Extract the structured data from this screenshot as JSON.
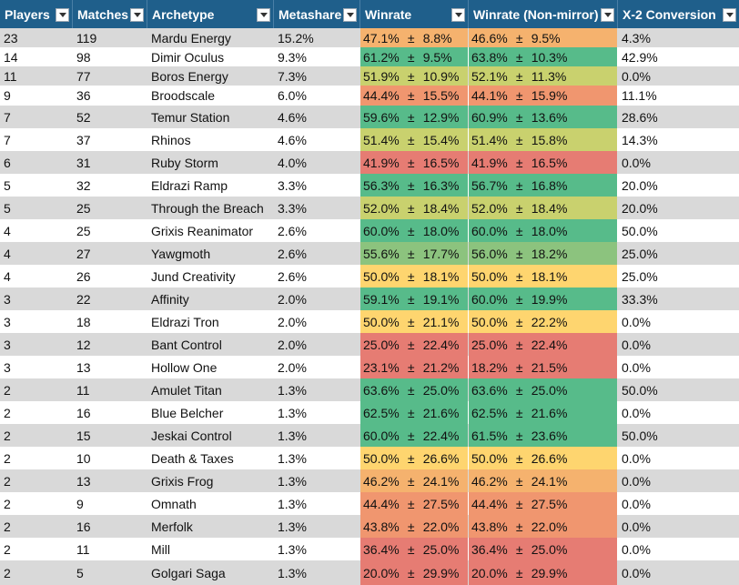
{
  "columns": [
    "Players",
    "Matches",
    "Archetype",
    "Metashare",
    "Winrate",
    "Winrate (Non-mirror)",
    "X-2 Conversion"
  ],
  "pm_symbol": "±",
  "colors": {
    "header_bg": "#1f5f8b",
    "row_alt": "#d9d9d9",
    "green": "#57bb8a",
    "light_green": "#8cc37e",
    "yellow_green": "#c9d16e",
    "yellow": "#fed56f",
    "light_orange": "#f5b26e",
    "orange": "#f0966f",
    "red": "#e67c73"
  },
  "rows": [
    {
      "players": "23",
      "matches": "119",
      "archetype": "Mardu Energy",
      "metashare": "15.2%",
      "wr": "47.1%",
      "wr_ci": "8.8%",
      "nm": "46.6%",
      "nm_ci": "9.5%",
      "x2": "4.3%",
      "wr_color": "light_orange",
      "nm_color": "light_orange"
    },
    {
      "players": "14",
      "matches": "98",
      "archetype": "Dimir Oculus",
      "metashare": "9.3%",
      "wr": "61.2%",
      "wr_ci": "9.5%",
      "nm": "63.8%",
      "nm_ci": "10.3%",
      "x2": "42.9%",
      "wr_color": "green",
      "nm_color": "green"
    },
    {
      "players": "11",
      "matches": "77",
      "archetype": "Boros Energy",
      "metashare": "7.3%",
      "wr": "51.9%",
      "wr_ci": "10.9%",
      "nm": "52.1%",
      "nm_ci": "11.3%",
      "x2": "0.0%",
      "wr_color": "yellow_green",
      "nm_color": "yellow_green"
    },
    {
      "players": "9",
      "matches": "36",
      "archetype": "Broodscale",
      "metashare": "6.0%",
      "wr": "44.4%",
      "wr_ci": "15.5%",
      "nm": "44.1%",
      "nm_ci": "15.9%",
      "x2": "11.1%",
      "wr_color": "orange",
      "nm_color": "orange"
    },
    {
      "players": "7",
      "matches": "52",
      "archetype": "Temur Station",
      "metashare": "4.6%",
      "wr": "59.6%",
      "wr_ci": "12.9%",
      "nm": "60.9%",
      "nm_ci": "13.6%",
      "x2": "28.6%",
      "wr_color": "green",
      "nm_color": "green"
    },
    {
      "players": "7",
      "matches": "37",
      "archetype": "Rhinos",
      "metashare": "4.6%",
      "wr": "51.4%",
      "wr_ci": "15.4%",
      "nm": "51.4%",
      "nm_ci": "15.8%",
      "x2": "14.3%",
      "wr_color": "yellow_green",
      "nm_color": "yellow_green"
    },
    {
      "players": "6",
      "matches": "31",
      "archetype": "Ruby Storm",
      "metashare": "4.0%",
      "wr": "41.9%",
      "wr_ci": "16.5%",
      "nm": "41.9%",
      "nm_ci": "16.5%",
      "x2": "0.0%",
      "wr_color": "red",
      "nm_color": "red"
    },
    {
      "players": "5",
      "matches": "32",
      "archetype": "Eldrazi Ramp",
      "metashare": "3.3%",
      "wr": "56.3%",
      "wr_ci": "16.3%",
      "nm": "56.7%",
      "nm_ci": "16.8%",
      "x2": "20.0%",
      "wr_color": "green",
      "nm_color": "green"
    },
    {
      "players": "5",
      "matches": "25",
      "archetype": "Through the Breach",
      "metashare": "3.3%",
      "wr": "52.0%",
      "wr_ci": "18.4%",
      "nm": "52.0%",
      "nm_ci": "18.4%",
      "x2": "20.0%",
      "wr_color": "yellow_green",
      "nm_color": "yellow_green"
    },
    {
      "players": "4",
      "matches": "25",
      "archetype": "Grixis Reanimator",
      "metashare": "2.6%",
      "wr": "60.0%",
      "wr_ci": "18.0%",
      "nm": "60.0%",
      "nm_ci": "18.0%",
      "x2": "50.0%",
      "wr_color": "green",
      "nm_color": "green"
    },
    {
      "players": "4",
      "matches": "27",
      "archetype": "Yawgmoth",
      "metashare": "2.6%",
      "wr": "55.6%",
      "wr_ci": "17.7%",
      "nm": "56.0%",
      "nm_ci": "18.2%",
      "x2": "25.0%",
      "wr_color": "light_green",
      "nm_color": "light_green"
    },
    {
      "players": "4",
      "matches": "26",
      "archetype": "Jund Creativity",
      "metashare": "2.6%",
      "wr": "50.0%",
      "wr_ci": "18.1%",
      "nm": "50.0%",
      "nm_ci": "18.1%",
      "x2": "25.0%",
      "wr_color": "yellow",
      "nm_color": "yellow"
    },
    {
      "players": "3",
      "matches": "22",
      "archetype": "Affinity",
      "metashare": "2.0%",
      "wr": "59.1%",
      "wr_ci": "19.1%",
      "nm": "60.0%",
      "nm_ci": "19.9%",
      "x2": "33.3%",
      "wr_color": "green",
      "nm_color": "green"
    },
    {
      "players": "3",
      "matches": "18",
      "archetype": "Eldrazi Tron",
      "metashare": "2.0%",
      "wr": "50.0%",
      "wr_ci": "21.1%",
      "nm": "50.0%",
      "nm_ci": "22.2%",
      "x2": "0.0%",
      "wr_color": "yellow",
      "nm_color": "yellow"
    },
    {
      "players": "3",
      "matches": "12",
      "archetype": "Bant Control",
      "metashare": "2.0%",
      "wr": "25.0%",
      "wr_ci": "22.4%",
      "nm": "25.0%",
      "nm_ci": "22.4%",
      "x2": "0.0%",
      "wr_color": "red",
      "nm_color": "red"
    },
    {
      "players": "3",
      "matches": "13",
      "archetype": "Hollow One",
      "metashare": "2.0%",
      "wr": "23.1%",
      "wr_ci": "21.2%",
      "nm": "18.2%",
      "nm_ci": "21.5%",
      "x2": "0.0%",
      "wr_color": "red",
      "nm_color": "red"
    },
    {
      "players": "2",
      "matches": "11",
      "archetype": "Amulet Titan",
      "metashare": "1.3%",
      "wr": "63.6%",
      "wr_ci": "25.0%",
      "nm": "63.6%",
      "nm_ci": "25.0%",
      "x2": "50.0%",
      "wr_color": "green",
      "nm_color": "green"
    },
    {
      "players": "2",
      "matches": "16",
      "archetype": "Blue Belcher",
      "metashare": "1.3%",
      "wr": "62.5%",
      "wr_ci": "21.6%",
      "nm": "62.5%",
      "nm_ci": "21.6%",
      "x2": "0.0%",
      "wr_color": "green",
      "nm_color": "green"
    },
    {
      "players": "2",
      "matches": "15",
      "archetype": "Jeskai Control",
      "metashare": "1.3%",
      "wr": "60.0%",
      "wr_ci": "22.4%",
      "nm": "61.5%",
      "nm_ci": "23.6%",
      "x2": "50.0%",
      "wr_color": "green",
      "nm_color": "green"
    },
    {
      "players": "2",
      "matches": "10",
      "archetype": "Death & Taxes",
      "metashare": "1.3%",
      "wr": "50.0%",
      "wr_ci": "26.6%",
      "nm": "50.0%",
      "nm_ci": "26.6%",
      "x2": "0.0%",
      "wr_color": "yellow",
      "nm_color": "yellow"
    },
    {
      "players": "2",
      "matches": "13",
      "archetype": "Grixis Frog",
      "metashare": "1.3%",
      "wr": "46.2%",
      "wr_ci": "24.1%",
      "nm": "46.2%",
      "nm_ci": "24.1%",
      "x2": "0.0%",
      "wr_color": "light_orange",
      "nm_color": "light_orange"
    },
    {
      "players": "2",
      "matches": "9",
      "archetype": "Omnath",
      "metashare": "1.3%",
      "wr": "44.4%",
      "wr_ci": "27.5%",
      "nm": "44.4%",
      "nm_ci": "27.5%",
      "x2": "0.0%",
      "wr_color": "orange",
      "nm_color": "orange"
    },
    {
      "players": "2",
      "matches": "16",
      "archetype": "Merfolk",
      "metashare": "1.3%",
      "wr": "43.8%",
      "wr_ci": "22.0%",
      "nm": "43.8%",
      "nm_ci": "22.0%",
      "x2": "0.0%",
      "wr_color": "orange",
      "nm_color": "orange"
    },
    {
      "players": "2",
      "matches": "11",
      "archetype": "Mill",
      "metashare": "1.3%",
      "wr": "36.4%",
      "wr_ci": "25.0%",
      "nm": "36.4%",
      "nm_ci": "25.0%",
      "x2": "0.0%",
      "wr_color": "red",
      "nm_color": "red"
    },
    {
      "players": "2",
      "matches": "5",
      "archetype": "Golgari Saga",
      "metashare": "1.3%",
      "wr": "20.0%",
      "wr_ci": "29.9%",
      "nm": "20.0%",
      "nm_ci": "29.9%",
      "x2": "0.0%",
      "wr_color": "red",
      "nm_color": "red"
    }
  ]
}
